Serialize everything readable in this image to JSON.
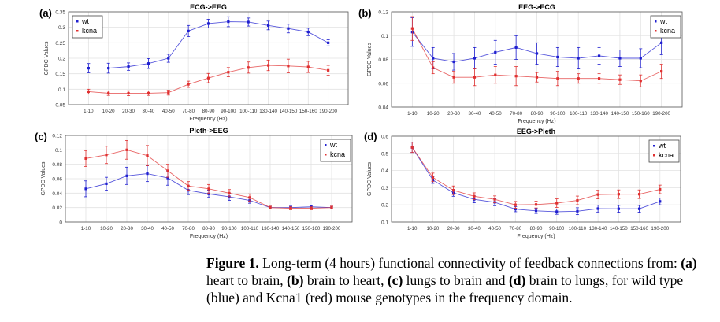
{
  "chart_data": [
    {
      "type": "line",
      "panel_label": "(a)",
      "title": "ECG->EEG",
      "xlabel": "Frequency (Hz)",
      "ylabel": "GPDC Values",
      "categories": [
        "1-10",
        "10-20",
        "20-30",
        "30-40",
        "40-50",
        "70-80",
        "80-90",
        "90-100",
        "100-110",
        "130-140",
        "140-150",
        "150-160",
        "190-200"
      ],
      "ylim": [
        0.05,
        0.35
      ],
      "yticks": [
        0.05,
        0.1,
        0.15,
        0.2,
        0.25,
        0.3,
        0.35
      ],
      "ytick_labels": [
        "0.05",
        "0.1",
        "0.15",
        "0.2",
        "0.25",
        "0.3",
        "0.35"
      ],
      "legend_position": "top-left",
      "grid": true,
      "series": [
        {
          "name": "wt",
          "color": "#1f1fd0",
          "values": [
            0.168,
            0.168,
            0.173,
            0.183,
            0.2,
            0.288,
            0.312,
            0.318,
            0.317,
            0.306,
            0.296,
            0.285,
            0.25
          ],
          "errors": [
            0.015,
            0.016,
            0.012,
            0.016,
            0.013,
            0.018,
            0.014,
            0.016,
            0.013,
            0.014,
            0.014,
            0.012,
            0.01
          ]
        },
        {
          "name": "kcna",
          "color": "#e03030",
          "values": [
            0.092,
            0.087,
            0.087,
            0.087,
            0.089,
            0.116,
            0.136,
            0.155,
            0.17,
            0.177,
            0.175,
            0.172,
            0.161
          ],
          "errors": [
            0.008,
            0.007,
            0.008,
            0.007,
            0.008,
            0.01,
            0.015,
            0.015,
            0.018,
            0.017,
            0.022,
            0.018,
            0.016
          ]
        }
      ]
    },
    {
      "type": "line",
      "panel_label": "(b)",
      "title": "EEG->ECG",
      "xlabel": "Frequency (Hz)",
      "ylabel": "GPDC Values",
      "categories": [
        "1-10",
        "10-20",
        "20-30",
        "30-40",
        "40-50",
        "70-80",
        "80-90",
        "90-100",
        "100-110",
        "130-140",
        "140-150",
        "150-160",
        "190-200"
      ],
      "ylim": [
        0.04,
        0.12
      ],
      "yticks": [
        0.04,
        0.06,
        0.08,
        0.1,
        0.12
      ],
      "ytick_labels": [
        "0.04",
        "0.06",
        "0.08",
        "0.1",
        "0.12"
      ],
      "legend_position": "top-right",
      "grid": true,
      "series": [
        {
          "name": "wt",
          "color": "#1f1fd0",
          "values": [
            0.103,
            0.081,
            0.078,
            0.081,
            0.086,
            0.09,
            0.085,
            0.082,
            0.081,
            0.083,
            0.081,
            0.081,
            0.094
          ],
          "errors": [
            0.012,
            0.009,
            0.007,
            0.009,
            0.01,
            0.01,
            0.009,
            0.008,
            0.009,
            0.007,
            0.007,
            0.008,
            0.01
          ]
        },
        {
          "name": "kcna",
          "color": "#e03030",
          "values": [
            0.106,
            0.073,
            0.065,
            0.065,
            0.067,
            0.066,
            0.065,
            0.064,
            0.064,
            0.064,
            0.063,
            0.062,
            0.07
          ],
          "errors": [
            0.01,
            0.005,
            0.005,
            0.007,
            0.007,
            0.008,
            0.004,
            0.006,
            0.004,
            0.004,
            0.004,
            0.005,
            0.006
          ]
        }
      ]
    },
    {
      "type": "line",
      "panel_label": "(c)",
      "title": "Pleth->EEG",
      "xlabel": "Frequency (Hz)",
      "ylabel": "GPDC Values",
      "categories": [
        "1-10",
        "10-20",
        "20-30",
        "30-40",
        "40-50",
        "70-80",
        "80-90",
        "90-100",
        "100-110",
        "130-140",
        "140-150",
        "150-160",
        "190-200"
      ],
      "ylim": [
        0,
        0.12
      ],
      "yticks": [
        0,
        0.02,
        0.04,
        0.06,
        0.08,
        0.1,
        0.12
      ],
      "ytick_labels": [
        "0",
        "0.02",
        "0.04",
        "0.06",
        "0.08",
        "0.1",
        "0.12"
      ],
      "legend_position": "top-right",
      "grid": true,
      "series": [
        {
          "name": "wt",
          "color": "#1f1fd0",
          "values": [
            0.046,
            0.053,
            0.064,
            0.067,
            0.061,
            0.044,
            0.039,
            0.035,
            0.03,
            0.02,
            0.02,
            0.021,
            0.02
          ],
          "errors": [
            0.011,
            0.009,
            0.012,
            0.011,
            0.01,
            0.006,
            0.005,
            0.005,
            0.004,
            0.002,
            0.002,
            0.002,
            0.002
          ]
        },
        {
          "name": "kcna",
          "color": "#e03030",
          "values": [
            0.088,
            0.093,
            0.1,
            0.092,
            0.071,
            0.05,
            0.046,
            0.04,
            0.034,
            0.02,
            0.019,
            0.019,
            0.02
          ],
          "errors": [
            0.011,
            0.012,
            0.013,
            0.014,
            0.009,
            0.006,
            0.006,
            0.005,
            0.005,
            0.002,
            0.002,
            0.002,
            0.002
          ]
        }
      ]
    },
    {
      "type": "line",
      "panel_label": "(d)",
      "title": "EEG->Pleth",
      "xlabel": "Frequency (Hz)",
      "ylabel": "GPDC Values",
      "categories": [
        "1-10",
        "10-20",
        "20-30",
        "30-40",
        "40-50",
        "70-80",
        "80-90",
        "90-100",
        "100-110",
        "130-140",
        "140-150",
        "150-160",
        "190-200"
      ],
      "ylim": [
        0.1,
        0.6
      ],
      "yticks": [
        0.1,
        0.2,
        0.3,
        0.4,
        0.5,
        0.6
      ],
      "ytick_labels": [
        "0.1",
        "0.2",
        "0.3",
        "0.4",
        "0.5",
        "0.6"
      ],
      "legend_position": "top-right",
      "grid": true,
      "series": [
        {
          "name": "wt",
          "color": "#1f1fd0",
          "values": [
            0.535,
            0.345,
            0.27,
            0.232,
            0.215,
            0.175,
            0.165,
            0.16,
            0.163,
            0.178,
            0.177,
            0.177,
            0.22
          ],
          "errors": [
            0.03,
            0.02,
            0.02,
            0.02,
            0.02,
            0.015,
            0.015,
            0.015,
            0.02,
            0.02,
            0.02,
            0.02,
            0.02
          ]
        },
        {
          "name": "kcna",
          "color": "#e03030",
          "values": [
            0.535,
            0.36,
            0.285,
            0.25,
            0.232,
            0.2,
            0.202,
            0.21,
            0.226,
            0.26,
            0.262,
            0.262,
            0.29
          ],
          "errors": [
            0.03,
            0.025,
            0.025,
            0.02,
            0.02,
            0.02,
            0.02,
            0.025,
            0.025,
            0.025,
            0.025,
            0.025,
            0.025
          ]
        }
      ]
    }
  ],
  "caption": {
    "figure_label": "Figure 1.",
    "text_1": " Long-term (4 hours) functional connectivity of feedback connections from: ",
    "a": "(a)",
    "text_2": " heart to brain, ",
    "b": "(b)",
    "text_3": " brain to heart, ",
    "c": "(c)",
    "text_4": " lungs to brain and ",
    "d": "(d)",
    "text_5": " brain to lungs, for wild type (blue) and Kcna1 (red) mouse genotypes in the frequency domain."
  }
}
